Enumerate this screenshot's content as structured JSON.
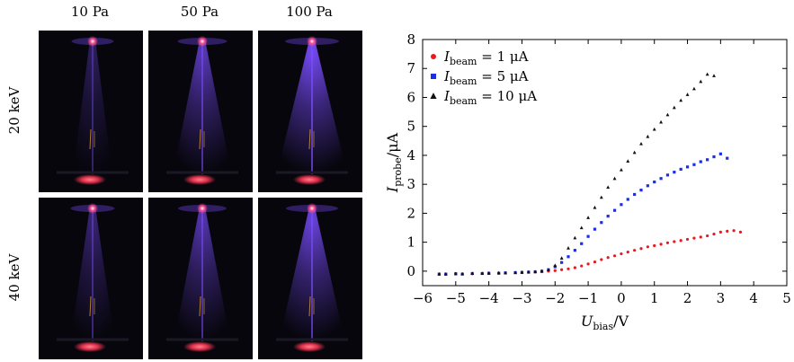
{
  "figure": {
    "columns": [
      "10 Pa",
      "50 Pa",
      "100 Pa"
    ],
    "rows": [
      "20 keV",
      "40 keV"
    ],
    "colors": {
      "photo_background": "#07060d",
      "plume_color": "#7a4dff",
      "spot_color": "#ff4f8e",
      "target_color": "#e0304a",
      "wire_color": "#d8a030"
    },
    "glow_intensity": [
      [
        0.35,
        0.75,
        1.0
      ],
      [
        0.45,
        0.7,
        0.9
      ]
    ]
  },
  "chart_data": {
    "type": "scatter",
    "xlabel_main": "U",
    "xlabel_sub": "bias",
    "xlabel_unit": "/V",
    "ylabel_main": "I",
    "ylabel_sub": "probe",
    "ylabel_unit": "/μA",
    "xlim": [
      -6,
      5
    ],
    "ylim": [
      -0.5,
      8
    ],
    "xticks": [
      -6,
      -5,
      -4,
      -3,
      -2,
      -1,
      0,
      1,
      2,
      3,
      4,
      5
    ],
    "yticks": [
      0,
      1,
      2,
      3,
      4,
      5,
      6,
      7,
      8
    ],
    "tick_labels_x": [
      "−6",
      "−5",
      "−4",
      "−3",
      "−2",
      "−1",
      "0",
      "1",
      "2",
      "3",
      "4",
      "5"
    ],
    "tick_labels_y": [
      "0",
      "1",
      "2",
      "3",
      "4",
      "5",
      "6",
      "7",
      "8"
    ],
    "legend_position": "top-left",
    "series": [
      {
        "name_main": "I",
        "name_sub": "beam",
        "name_value": " = 1 μA",
        "marker": "circle",
        "color": "#e8191f",
        "x": [
          -5.5,
          -5.3,
          -5.0,
          -4.8,
          -4.5,
          -4.2,
          -4.0,
          -3.7,
          -3.5,
          -3.2,
          -3.0,
          -2.8,
          -2.6,
          -2.4,
          -2.2,
          -2.0,
          -1.8,
          -1.6,
          -1.4,
          -1.2,
          -1.0,
          -0.8,
          -0.6,
          -0.4,
          -0.2,
          0.0,
          0.2,
          0.4,
          0.6,
          0.8,
          1.0,
          1.2,
          1.4,
          1.6,
          1.8,
          2.0,
          2.2,
          2.4,
          2.6,
          2.8,
          3.0,
          3.2,
          3.4,
          3.6
        ],
        "y": [
          -0.1,
          -0.1,
          -0.08,
          -0.1,
          -0.09,
          -0.08,
          -0.08,
          -0.07,
          -0.06,
          -0.05,
          -0.05,
          -0.04,
          -0.03,
          -0.02,
          0.0,
          0.02,
          0.05,
          0.08,
          0.12,
          0.18,
          0.25,
          0.32,
          0.4,
          0.47,
          0.53,
          0.6,
          0.66,
          0.72,
          0.78,
          0.84,
          0.88,
          0.93,
          0.98,
          1.02,
          1.06,
          1.1,
          1.14,
          1.18,
          1.22,
          1.28,
          1.35,
          1.38,
          1.4,
          1.35
        ]
      },
      {
        "name_main": "I",
        "name_sub": "beam",
        "name_value": " = 5 μA",
        "marker": "square",
        "color": "#1a2ee8",
        "x": [
          -5.5,
          -5.3,
          -5.0,
          -4.8,
          -4.5,
          -4.2,
          -4.0,
          -3.7,
          -3.5,
          -3.2,
          -3.0,
          -2.8,
          -2.6,
          -2.4,
          -2.2,
          -2.0,
          -1.8,
          -1.6,
          -1.4,
          -1.2,
          -1.0,
          -0.8,
          -0.6,
          -0.4,
          -0.2,
          0.0,
          0.2,
          0.4,
          0.6,
          0.8,
          1.0,
          1.2,
          1.4,
          1.6,
          1.8,
          2.0,
          2.2,
          2.4,
          2.6,
          2.8,
          3.0,
          3.2
        ],
        "y": [
          -0.1,
          -0.1,
          -0.09,
          -0.1,
          -0.08,
          -0.08,
          -0.07,
          -0.07,
          -0.06,
          -0.05,
          -0.04,
          -0.03,
          -0.02,
          0.0,
          0.05,
          0.15,
          0.3,
          0.5,
          0.72,
          0.95,
          1.2,
          1.45,
          1.68,
          1.9,
          2.1,
          2.3,
          2.48,
          2.65,
          2.8,
          2.95,
          3.08,
          3.2,
          3.32,
          3.42,
          3.52,
          3.6,
          3.68,
          3.78,
          3.85,
          3.95,
          4.05,
          3.9
        ]
      },
      {
        "name_main": "I",
        "name_sub": "beam",
        "name_value": " = 10 μA",
        "marker": "triangle",
        "color": "#111111",
        "x": [
          -5.5,
          -5.3,
          -5.0,
          -4.8,
          -4.5,
          -4.2,
          -4.0,
          -3.7,
          -3.5,
          -3.2,
          -3.0,
          -2.8,
          -2.6,
          -2.4,
          -2.2,
          -2.0,
          -1.8,
          -1.6,
          -1.4,
          -1.2,
          -1.0,
          -0.8,
          -0.6,
          -0.4,
          -0.2,
          0.0,
          0.2,
          0.4,
          0.6,
          0.8,
          1.0,
          1.2,
          1.4,
          1.6,
          1.8,
          2.0,
          2.2,
          2.4,
          2.6,
          2.8
        ],
        "y": [
          -0.1,
          -0.1,
          -0.09,
          -0.09,
          -0.08,
          -0.08,
          -0.07,
          -0.06,
          -0.06,
          -0.05,
          -0.04,
          -0.03,
          -0.02,
          0.0,
          0.05,
          0.2,
          0.45,
          0.8,
          1.15,
          1.5,
          1.85,
          2.2,
          2.55,
          2.9,
          3.2,
          3.5,
          3.8,
          4.1,
          4.4,
          4.65,
          4.9,
          5.15,
          5.4,
          5.65,
          5.9,
          6.1,
          6.3,
          6.55,
          6.8,
          6.75
        ]
      }
    ]
  }
}
